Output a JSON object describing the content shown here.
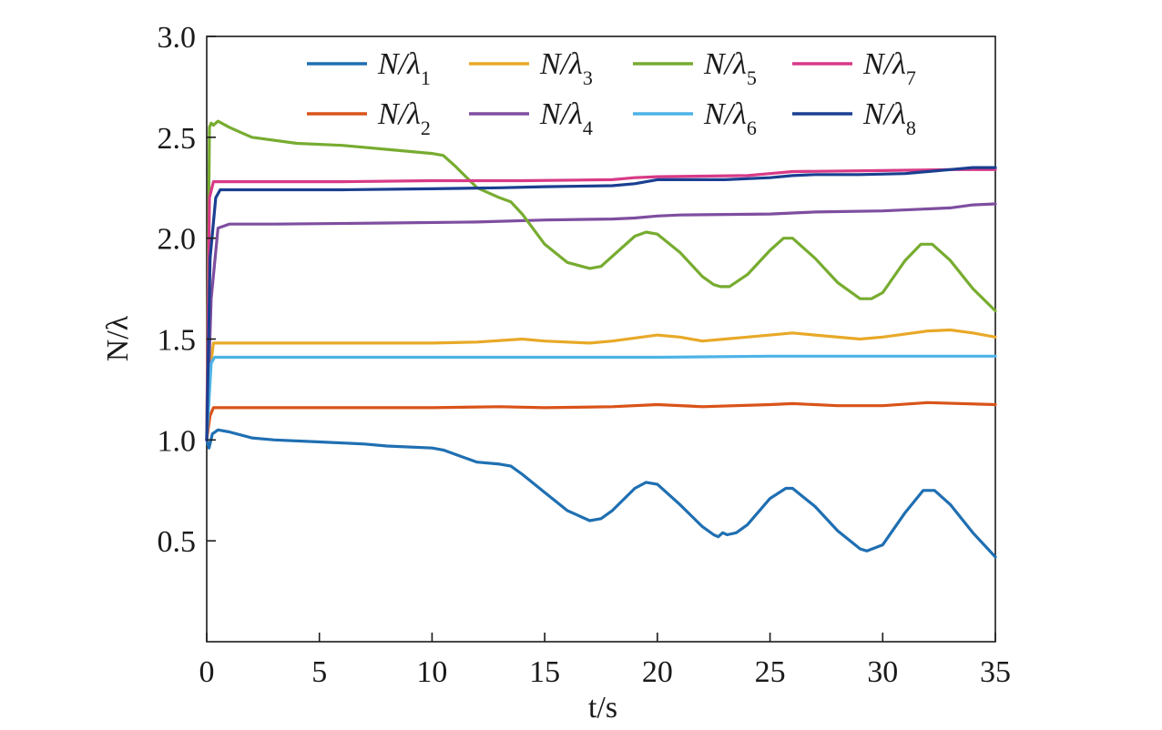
{
  "chart_data": {
    "type": "line",
    "title": "",
    "xlabel": "t/s",
    "ylabel": "N/λ",
    "xlim": [
      0,
      35
    ],
    "ylim": [
      0.0,
      3.0
    ],
    "xticks": [
      0,
      5,
      10,
      15,
      20,
      25,
      30,
      35
    ],
    "yticks": [
      0.5,
      1.0,
      1.5,
      2.0,
      2.5,
      3.0
    ],
    "xtick_labels": [
      "0",
      "5",
      "10",
      "15",
      "20",
      "25",
      "30",
      "35"
    ],
    "ytick_labels": [
      "0.5",
      "1.0",
      "1.5",
      "2.0",
      "2.5",
      "3.0"
    ],
    "grid": false,
    "legend_placement": "top",
    "series": [
      {
        "name": "N/λ1",
        "base": "N/λ",
        "sub": "1",
        "color": "#1f6fb2",
        "points": [
          [
            0,
            1.0
          ],
          [
            0.1,
            0.96
          ],
          [
            0.25,
            1.03
          ],
          [
            0.5,
            1.05
          ],
          [
            1,
            1.04
          ],
          [
            2,
            1.01
          ],
          [
            3,
            1.0
          ],
          [
            5,
            0.99
          ],
          [
            7,
            0.98
          ],
          [
            8,
            0.97
          ],
          [
            10,
            0.96
          ],
          [
            10.5,
            0.95
          ],
          [
            11,
            0.93
          ],
          [
            12,
            0.89
          ],
          [
            13,
            0.88
          ],
          [
            13.5,
            0.87
          ],
          [
            14,
            0.83
          ],
          [
            15,
            0.74
          ],
          [
            16,
            0.65
          ],
          [
            17,
            0.6
          ],
          [
            17.5,
            0.61
          ],
          [
            18,
            0.65
          ],
          [
            19,
            0.76
          ],
          [
            19.5,
            0.79
          ],
          [
            20,
            0.78
          ],
          [
            21,
            0.68
          ],
          [
            22,
            0.57
          ],
          [
            22.5,
            0.53
          ],
          [
            22.7,
            0.52
          ],
          [
            22.9,
            0.54
          ],
          [
            23.1,
            0.53
          ],
          [
            23.5,
            0.54
          ],
          [
            24,
            0.58
          ],
          [
            25,
            0.71
          ],
          [
            25.7,
            0.76
          ],
          [
            26,
            0.76
          ],
          [
            27,
            0.67
          ],
          [
            28,
            0.55
          ],
          [
            29,
            0.46
          ],
          [
            29.3,
            0.45
          ],
          [
            30,
            0.48
          ],
          [
            31,
            0.64
          ],
          [
            31.8,
            0.75
          ],
          [
            32.3,
            0.75
          ],
          [
            33,
            0.68
          ],
          [
            34,
            0.54
          ],
          [
            35,
            0.42
          ]
        ]
      },
      {
        "name": "N/λ2",
        "base": "N/λ",
        "sub": "2",
        "color": "#d95319",
        "points": [
          [
            0,
            1.0
          ],
          [
            0.15,
            1.12
          ],
          [
            0.3,
            1.16
          ],
          [
            2,
            1.16
          ],
          [
            5,
            1.16
          ],
          [
            10,
            1.16
          ],
          [
            13,
            1.165
          ],
          [
            15,
            1.16
          ],
          [
            18,
            1.165
          ],
          [
            20,
            1.175
          ],
          [
            22,
            1.165
          ],
          [
            25,
            1.175
          ],
          [
            26,
            1.18
          ],
          [
            28,
            1.17
          ],
          [
            30,
            1.17
          ],
          [
            32,
            1.185
          ],
          [
            35,
            1.175
          ]
        ]
      },
      {
        "name": "N/λ3",
        "base": "N/λ",
        "sub": "3",
        "color": "#e8a928",
        "points": [
          [
            0,
            1.0
          ],
          [
            0.15,
            1.35
          ],
          [
            0.3,
            1.48
          ],
          [
            2,
            1.48
          ],
          [
            6,
            1.48
          ],
          [
            10,
            1.48
          ],
          [
            12,
            1.485
          ],
          [
            14,
            1.5
          ],
          [
            15,
            1.49
          ],
          [
            17,
            1.48
          ],
          [
            18,
            1.49
          ],
          [
            20,
            1.52
          ],
          [
            21,
            1.51
          ],
          [
            22,
            1.49
          ],
          [
            23,
            1.5
          ],
          [
            24,
            1.51
          ],
          [
            26,
            1.53
          ],
          [
            27,
            1.52
          ],
          [
            29,
            1.5
          ],
          [
            30,
            1.51
          ],
          [
            32,
            1.54
          ],
          [
            33,
            1.545
          ],
          [
            34,
            1.53
          ],
          [
            35,
            1.51
          ]
        ]
      },
      {
        "name": "N/λ4",
        "base": "N/λ",
        "sub": "4",
        "color": "#7e4ea0",
        "points": [
          [
            0,
            1.0
          ],
          [
            0.2,
            1.7
          ],
          [
            0.5,
            2.05
          ],
          [
            1,
            2.07
          ],
          [
            3,
            2.07
          ],
          [
            8,
            2.075
          ],
          [
            12,
            2.08
          ],
          [
            15,
            2.09
          ],
          [
            18,
            2.095
          ],
          [
            19,
            2.1
          ],
          [
            20,
            2.11
          ],
          [
            21,
            2.115
          ],
          [
            25,
            2.12
          ],
          [
            27,
            2.13
          ],
          [
            30,
            2.135
          ],
          [
            33,
            2.15
          ],
          [
            34,
            2.165
          ],
          [
            35,
            2.17
          ]
        ]
      },
      {
        "name": "N/λ5",
        "base": "N/λ",
        "sub": "5",
        "color": "#77ac30",
        "points": [
          [
            0,
            1.0
          ],
          [
            0.12,
            2.55
          ],
          [
            0.2,
            2.57
          ],
          [
            0.3,
            2.56
          ],
          [
            0.5,
            2.58
          ],
          [
            1,
            2.55
          ],
          [
            2,
            2.5
          ],
          [
            4,
            2.47
          ],
          [
            6,
            2.46
          ],
          [
            8,
            2.44
          ],
          [
            10,
            2.42
          ],
          [
            10.5,
            2.41
          ],
          [
            11,
            2.36
          ],
          [
            12,
            2.25
          ],
          [
            13,
            2.2
          ],
          [
            13.5,
            2.18
          ],
          [
            14,
            2.12
          ],
          [
            15,
            1.97
          ],
          [
            16,
            1.88
          ],
          [
            17,
            1.85
          ],
          [
            17.5,
            1.86
          ],
          [
            18,
            1.91
          ],
          [
            19,
            2.01
          ],
          [
            19.5,
            2.03
          ],
          [
            20,
            2.02
          ],
          [
            21,
            1.93
          ],
          [
            22,
            1.81
          ],
          [
            22.5,
            1.77
          ],
          [
            22.8,
            1.76
          ],
          [
            23.2,
            1.76
          ],
          [
            24,
            1.82
          ],
          [
            25,
            1.94
          ],
          [
            25.6,
            2.0
          ],
          [
            26,
            2.0
          ],
          [
            27,
            1.9
          ],
          [
            28,
            1.78
          ],
          [
            29,
            1.7
          ],
          [
            29.5,
            1.7
          ],
          [
            30,
            1.73
          ],
          [
            31,
            1.89
          ],
          [
            31.7,
            1.97
          ],
          [
            32.2,
            1.97
          ],
          [
            33,
            1.89
          ],
          [
            34,
            1.75
          ],
          [
            35,
            1.64
          ]
        ]
      },
      {
        "name": "N/λ6",
        "base": "N/λ",
        "sub": "6",
        "color": "#4db3e6",
        "points": [
          [
            0,
            1.0
          ],
          [
            0.2,
            1.38
          ],
          [
            0.35,
            1.41
          ],
          [
            2,
            1.41
          ],
          [
            10,
            1.41
          ],
          [
            15,
            1.41
          ],
          [
            20,
            1.41
          ],
          [
            25,
            1.415
          ],
          [
            30,
            1.415
          ],
          [
            35,
            1.415
          ]
        ]
      },
      {
        "name": "N/λ7",
        "base": "N/λ",
        "sub": "7",
        "color": "#d83a87",
        "points": [
          [
            0,
            1.0
          ],
          [
            0.12,
            2.2
          ],
          [
            0.3,
            2.28
          ],
          [
            2,
            2.28
          ],
          [
            6,
            2.28
          ],
          [
            10,
            2.285
          ],
          [
            14,
            2.285
          ],
          [
            18,
            2.29
          ],
          [
            19,
            2.3
          ],
          [
            20,
            2.305
          ],
          [
            24,
            2.31
          ],
          [
            25,
            2.32
          ],
          [
            26,
            2.33
          ],
          [
            30,
            2.335
          ],
          [
            33,
            2.34
          ],
          [
            35,
            2.34
          ]
        ]
      },
      {
        "name": "N/λ8",
        "base": "N/λ",
        "sub": "8",
        "color": "#1a3f91",
        "points": [
          [
            0,
            1.0
          ],
          [
            0.15,
            1.9
          ],
          [
            0.4,
            2.2
          ],
          [
            0.6,
            2.24
          ],
          [
            2,
            2.24
          ],
          [
            6,
            2.24
          ],
          [
            10,
            2.245
          ],
          [
            13,
            2.25
          ],
          [
            15,
            2.255
          ],
          [
            18,
            2.26
          ],
          [
            19,
            2.27
          ],
          [
            20,
            2.29
          ],
          [
            21,
            2.29
          ],
          [
            23,
            2.29
          ],
          [
            25,
            2.3
          ],
          [
            26,
            2.31
          ],
          [
            27,
            2.315
          ],
          [
            29,
            2.315
          ],
          [
            31,
            2.32
          ],
          [
            33,
            2.34
          ],
          [
            34,
            2.35
          ],
          [
            35,
            2.35
          ]
        ]
      }
    ]
  }
}
